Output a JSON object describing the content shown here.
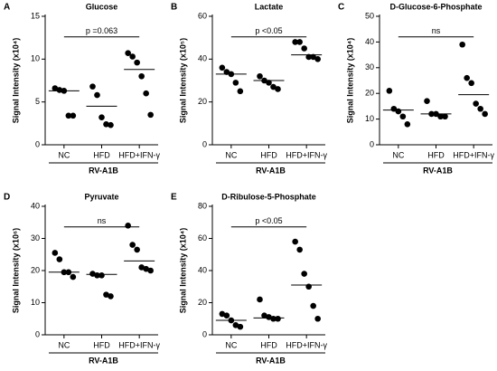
{
  "chart_data": [
    {
      "type": "dot",
      "panel": "A",
      "title": "Glucose",
      "ylabel": "Signal Intensity (x10⁴)",
      "group_label": "RV-A1B",
      "annotation": "p =0.063",
      "categories": [
        "NC",
        "HFD",
        "HFD+IFN-γ"
      ],
      "ylim": [
        0,
        15
      ],
      "yticks": [
        0,
        5,
        10,
        15
      ],
      "values": [
        [
          6.6,
          6.4,
          6.3,
          3.4,
          3.4
        ],
        [
          6.8,
          5.8,
          3.2,
          2.4,
          2.3
        ],
        [
          10.7,
          10.3,
          9.6,
          8.0,
          6.0,
          3.5
        ]
      ],
      "center_lines": [
        6.3,
        4.5,
        8.8
      ],
      "color": "#000000"
    },
    {
      "type": "dot",
      "panel": "B",
      "title": "Lactate",
      "ylabel": "Signal Intensity (x10⁵)",
      "group_label": "RV-A1B",
      "annotation": "p <0.05",
      "categories": [
        "NC",
        "HFD",
        "HFD+IFN-γ"
      ],
      "ylim": [
        0,
        60
      ],
      "yticks": [
        0,
        20,
        40,
        60
      ],
      "values": [
        [
          36,
          34,
          33,
          29,
          25
        ],
        [
          32,
          30,
          29,
          27,
          26
        ],
        [
          48,
          48,
          45,
          41,
          41,
          40
        ]
      ],
      "center_lines": [
        33,
        30,
        42
      ],
      "color": "#000000"
    },
    {
      "type": "dot",
      "panel": "C",
      "title": "D-Glucose-6-Phosphate",
      "ylabel": "Signal Intensity (x10⁴)",
      "group_label": "RV-A1B",
      "annotation": "ns",
      "categories": [
        "NC",
        "HFD",
        "HFD+IFN-γ"
      ],
      "ylim": [
        0,
        50
      ],
      "yticks": [
        0,
        10,
        20,
        30,
        40,
        50
      ],
      "values": [
        [
          21,
          14,
          13,
          11,
          8
        ],
        [
          17,
          12,
          12,
          11,
          11
        ],
        [
          39,
          26,
          24,
          16,
          14,
          12
        ]
      ],
      "center_lines": [
        13.5,
        12,
        19.5
      ],
      "color": "#000000"
    },
    {
      "type": "dot",
      "panel": "D",
      "title": "Pyruvate",
      "ylabel": "Signal Intensity (x10⁶)",
      "group_label": "RV-A1B",
      "annotation": "ns",
      "categories": [
        "NC",
        "HFD",
        "HFD+IFN-γ"
      ],
      "ylim": [
        0,
        40
      ],
      "yticks": [
        0,
        10,
        20,
        30,
        40
      ],
      "values": [
        [
          25.5,
          23.5,
          19.5,
          19.5,
          18
        ],
        [
          19,
          18.5,
          18.5,
          12.5,
          12
        ],
        [
          34,
          28,
          26.5,
          21,
          20.5,
          20
        ]
      ],
      "center_lines": [
        19.5,
        18.8,
        23
      ],
      "color": "#000000"
    },
    {
      "type": "dot",
      "panel": "E",
      "title": "D-Ribulose-5-Phosphate",
      "ylabel": "Signal Intensity (x10⁴)",
      "group_label": "RV-A1B",
      "annotation": "p <0.05",
      "categories": [
        "NC",
        "HFD",
        "HFD+IFN-γ"
      ],
      "ylim": [
        0,
        80
      ],
      "yticks": [
        0,
        20,
        40,
        60,
        80
      ],
      "values": [
        [
          13,
          12,
          9,
          6,
          5
        ],
        [
          22,
          12,
          11,
          10,
          10
        ],
        [
          58,
          53,
          38,
          30,
          18,
          10
        ]
      ],
      "center_lines": [
        9,
        10.5,
        31
      ],
      "color": "#000000"
    }
  ]
}
